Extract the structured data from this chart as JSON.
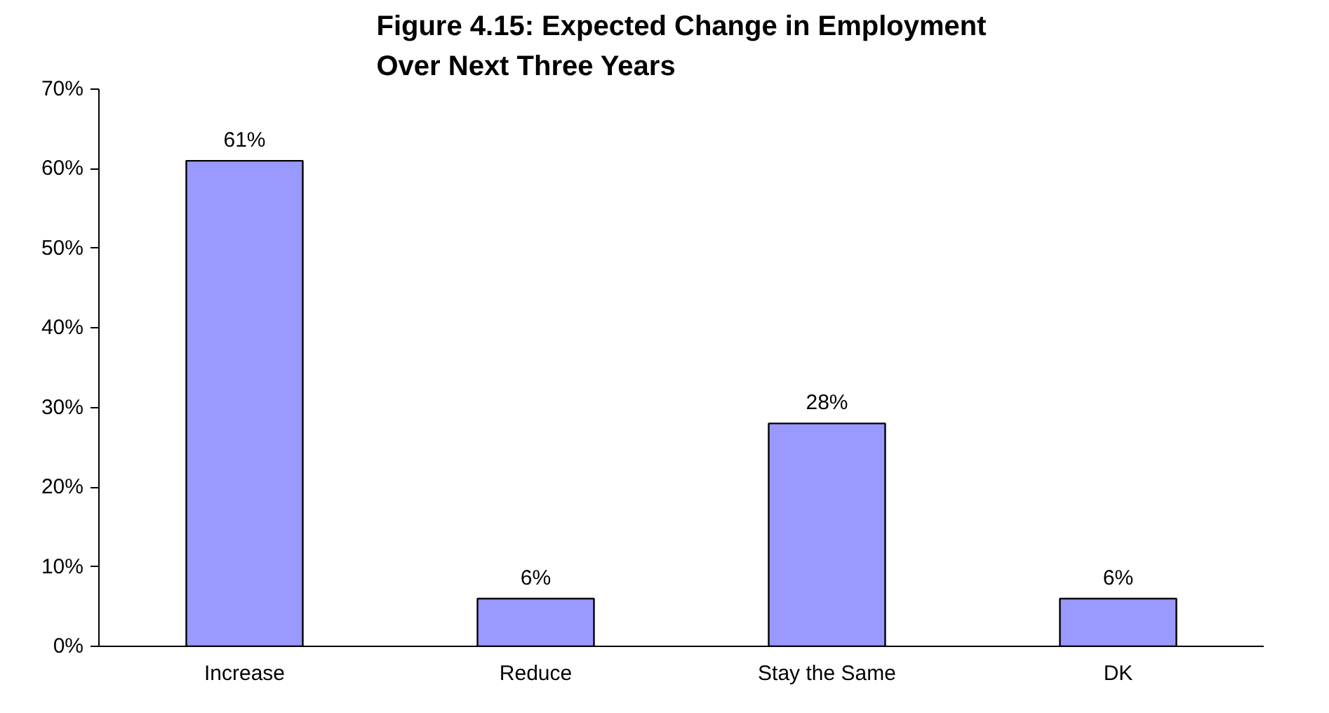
{
  "chart_data": {
    "type": "bar",
    "title": "Figure 4.15: Expected Change in Employment\nOver Next Three Years",
    "categories": [
      "Increase",
      "Reduce",
      "Stay the Same",
      "DK"
    ],
    "values": [
      61,
      6,
      28,
      6
    ],
    "color": "#9999ff",
    "value_labels": [
      "61%",
      "6%",
      "28%",
      "6%"
    ],
    "ylim": [
      0,
      70
    ],
    "yticks": [
      {
        "value": 0,
        "label": "0%"
      },
      {
        "value": 10,
        "label": "10%"
      },
      {
        "value": 20,
        "label": "20%"
      },
      {
        "value": 30,
        "label": "30%"
      },
      {
        "value": 40,
        "label": "40%"
      },
      {
        "value": 50,
        "label": "50%"
      },
      {
        "value": 60,
        "label": "60%"
      },
      {
        "value": 70,
        "label": "70%"
      }
    ],
    "grid": false
  }
}
